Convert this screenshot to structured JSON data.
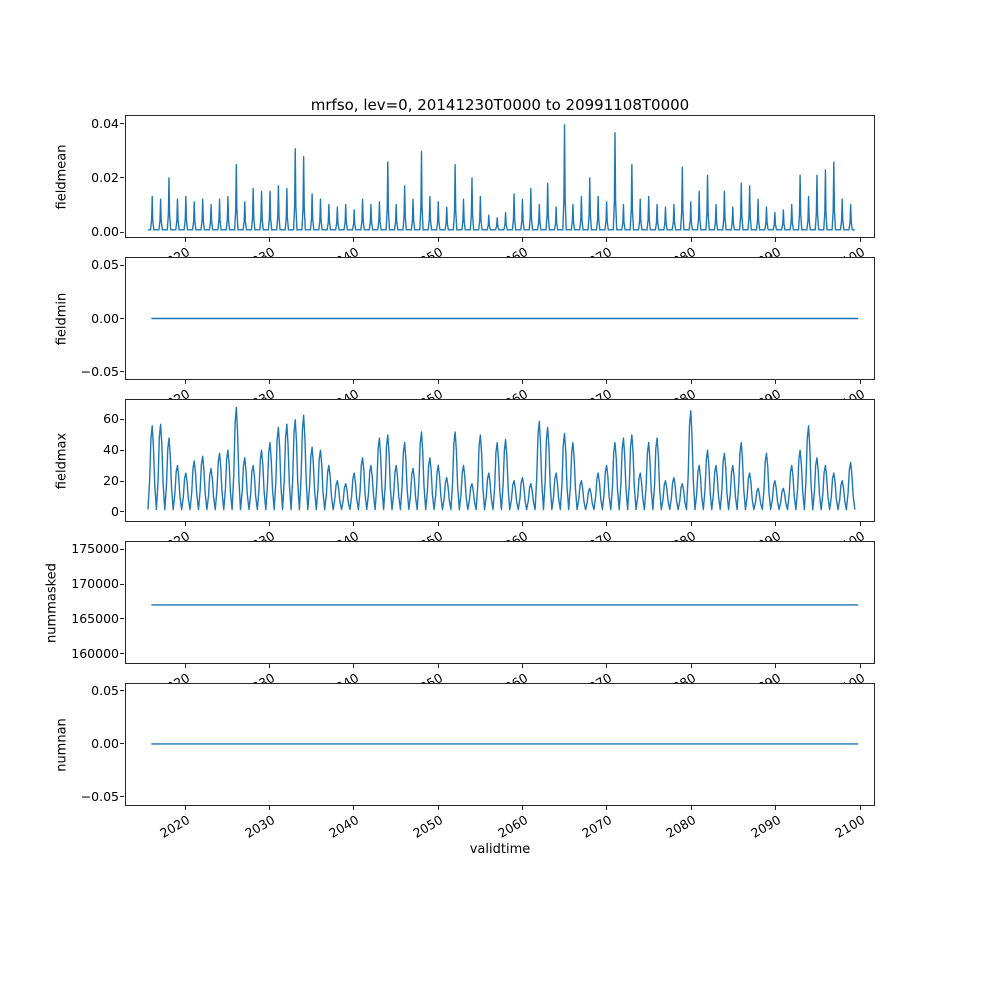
{
  "figure": {
    "title": "mrfso, lev=0, 20141230T0000 to 20991108T0000",
    "xlabel": "validtime",
    "line_color": "#1f77b4",
    "background": "#ffffff"
  },
  "x_axis": {
    "ticks": [
      2020,
      2030,
      2040,
      2050,
      2060,
      2070,
      2080,
      2090,
      2100
    ],
    "tick_labels": [
      "2020",
      "2030",
      "2040",
      "2050",
      "2060",
      "2070",
      "2080",
      "2090",
      "2100"
    ],
    "data_range": [
      2015.9,
      2099.9
    ]
  },
  "chart_data": [
    {
      "name": "fieldmean",
      "type": "line",
      "ylabel": "fieldmean",
      "kind": "spikes",
      "spike_profile": "narrow",
      "baseline": 0.0005,
      "peak_start_year": 2016,
      "ylim": [
        -0.0022,
        0.0433
      ],
      "yticks": [
        {
          "v": 0.0,
          "label": "0.00"
        },
        {
          "v": 0.02,
          "label": "0.02"
        },
        {
          "v": 0.04,
          "label": "0.04"
        }
      ],
      "peaks": [
        0.013,
        0.012,
        0.02,
        0.012,
        0.013,
        0.011,
        0.012,
        0.01,
        0.012,
        0.013,
        0.025,
        0.011,
        0.016,
        0.015,
        0.015,
        0.017,
        0.016,
        0.031,
        0.028,
        0.014,
        0.012,
        0.01,
        0.009,
        0.01,
        0.008,
        0.012,
        0.01,
        0.011,
        0.026,
        0.01,
        0.017,
        0.012,
        0.03,
        0.013,
        0.011,
        0.009,
        0.025,
        0.012,
        0.02,
        0.013,
        0.006,
        0.005,
        0.007,
        0.014,
        0.012,
        0.016,
        0.01,
        0.018,
        0.009,
        0.04,
        0.01,
        0.013,
        0.02,
        0.013,
        0.011,
        0.037,
        0.01,
        0.025,
        0.012,
        0.013,
        0.01,
        0.009,
        0.01,
        0.024,
        0.011,
        0.015,
        0.021,
        0.01,
        0.015,
        0.009,
        0.018,
        0.017,
        0.012,
        0.009,
        0.007,
        0.008,
        0.01,
        0.021,
        0.013,
        0.021,
        0.023,
        0.026,
        0.012,
        0.01
      ]
    },
    {
      "name": "fieldmin",
      "type": "line",
      "ylabel": "fieldmin",
      "kind": "flat",
      "value": 0.0,
      "ylim": [
        -0.0575,
        0.0575
      ],
      "yticks": [
        {
          "v": -0.05,
          "label": "−0.05"
        },
        {
          "v": 0.0,
          "label": "0.00"
        },
        {
          "v": 0.05,
          "label": "0.05"
        }
      ]
    },
    {
      "name": "fieldmax",
      "type": "line",
      "ylabel": "fieldmax",
      "kind": "spikes",
      "spike_profile": "broad",
      "baseline": 1,
      "peak_start_year": 2016,
      "ylim": [
        -6.5,
        73
      ],
      "yticks": [
        {
          "v": 0,
          "label": "0"
        },
        {
          "v": 20,
          "label": "20"
        },
        {
          "v": 40,
          "label": "40"
        },
        {
          "v": 60,
          "label": "60"
        }
      ],
      "peaks": [
        56,
        57,
        48,
        30,
        25,
        33,
        36,
        28,
        38,
        40,
        68,
        35,
        30,
        40,
        45,
        55,
        57,
        60,
        63,
        42,
        40,
        30,
        20,
        18,
        25,
        35,
        30,
        48,
        50,
        30,
        45,
        28,
        52,
        35,
        30,
        22,
        52,
        30,
        18,
        50,
        25,
        45,
        47,
        20,
        22,
        18,
        59,
        55,
        25,
        51,
        45,
        20,
        15,
        25,
        30,
        45,
        48,
        50,
        25,
        45,
        48,
        20,
        22,
        18,
        66,
        30,
        40,
        30,
        38,
        30,
        45,
        25,
        15,
        38,
        20,
        15,
        30,
        40,
        56,
        35,
        30,
        25,
        20,
        32
      ]
    },
    {
      "name": "nummasked",
      "type": "line",
      "ylabel": "nummasked",
      "kind": "flat",
      "value": 167000,
      "ylim": [
        158500,
        176200
      ],
      "yticks": [
        {
          "v": 160000,
          "label": "160000"
        },
        {
          "v": 165000,
          "label": "165000"
        },
        {
          "v": 170000,
          "label": "170000"
        },
        {
          "v": 175000,
          "label": "175000"
        }
      ]
    },
    {
      "name": "numnan",
      "type": "line",
      "ylabel": "numnan",
      "kind": "flat",
      "value": 0.0,
      "ylim": [
        -0.0585,
        0.0575
      ],
      "yticks": [
        {
          "v": -0.05,
          "label": "−0.05"
        },
        {
          "v": 0.0,
          "label": "0.00"
        },
        {
          "v": 0.05,
          "label": "0.05"
        }
      ]
    }
  ]
}
